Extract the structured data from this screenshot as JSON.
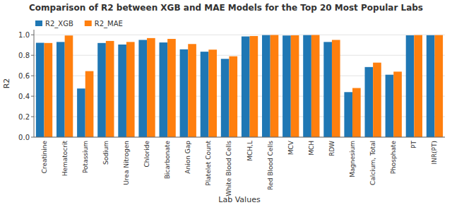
{
  "chart_data": {
    "type": "bar",
    "title": "Comparison of R2 between XGB and MAE Models for the Top 20 Most Popular Labs",
    "xlabel": "Lab Values",
    "ylabel": "R2",
    "categories": [
      "Creatinine",
      "Hematocrit",
      "Potassium",
      "Sodium",
      "Urea Nitrogen",
      "Chloride",
      "Bicarbonate",
      "Anion Gap",
      "Platelet Count",
      "White Blood Cells",
      "MCH,L",
      "Red Blood Cells",
      "MCV",
      "MCH",
      "RDW",
      "Magnesium",
      "Calcium, Total",
      "Phosphate",
      "PT",
      "INR(PT)"
    ],
    "series": [
      {
        "name": "R2_XGB",
        "color": "#1f77b4",
        "values": [
          0.922,
          0.93,
          0.475,
          0.92,
          0.905,
          0.95,
          0.925,
          0.858,
          0.835,
          0.765,
          0.984,
          0.997,
          0.993,
          0.997,
          0.93,
          0.44,
          0.685,
          0.61,
          0.995,
          0.996
        ]
      },
      {
        "name": "R2_MAE",
        "color": "#ff7f0e",
        "values": [
          0.92,
          0.993,
          0.645,
          0.94,
          0.93,
          0.968,
          0.96,
          0.91,
          0.855,
          0.79,
          0.988,
          0.998,
          0.995,
          0.998,
          0.95,
          0.48,
          0.728,
          0.64,
          0.997,
          0.997
        ]
      }
    ],
    "ylim": [
      0.0,
      1.05
    ],
    "yticks": [
      {
        "value": 0.0,
        "label": "0.0"
      },
      0.2,
      0.4,
      0.6,
      0.8,
      {
        "value": 1.0,
        "label": "1.0"
      }
    ],
    "grid": true,
    "legend": "upper left"
  }
}
